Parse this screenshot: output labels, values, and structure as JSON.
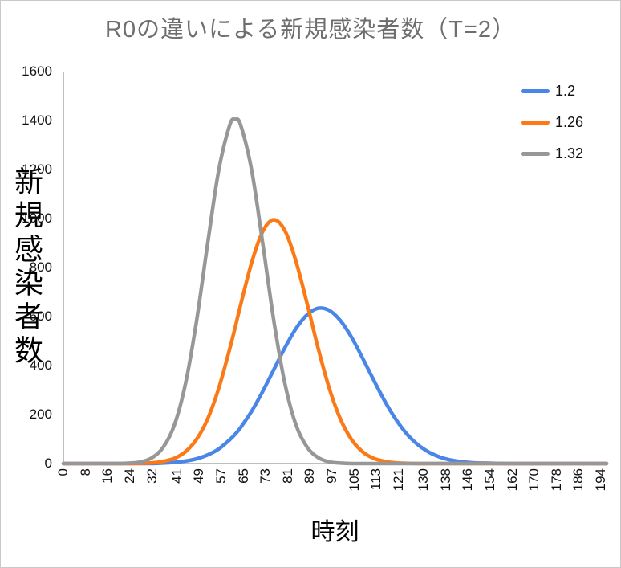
{
  "chart_data": {
    "type": "line",
    "title": "R0の違いによる新規感染者数（T=2）",
    "xlabel": "時刻",
    "ylabel": "新規感染者数",
    "ylim": [
      0,
      1600
    ],
    "xlim": [
      0,
      196
    ],
    "grid": "horizontal",
    "legend_position": "top-right",
    "y_ticks": [
      0,
      200,
      400,
      600,
      800,
      1000,
      1200,
      1400,
      1600
    ],
    "x_tick_labels": [
      0,
      8,
      16,
      24,
      32,
      41,
      49,
      57,
      65,
      73,
      81,
      89,
      97,
      105,
      113,
      121,
      130,
      138,
      146,
      154,
      162,
      170,
      178,
      186,
      194
    ],
    "x": [
      0,
      4,
      8,
      12,
      16,
      20,
      24,
      28,
      32,
      36,
      40,
      44,
      48,
      52,
      56,
      60,
      62,
      64,
      68,
      72,
      76,
      80,
      84,
      88,
      92,
      96,
      100,
      104,
      108,
      112,
      116,
      120,
      124,
      128,
      132,
      136,
      140,
      144,
      148,
      152,
      156,
      160,
      164,
      168,
      172,
      176,
      180,
      184,
      188,
      192,
      196
    ],
    "series": [
      {
        "name": "1.2",
        "color": "#4a86e8",
        "peak": {
          "x": 93,
          "y": 635
        },
        "values": [
          0,
          0,
          0,
          0,
          0,
          0,
          0,
          0,
          0,
          2,
          5,
          10,
          19,
          35,
          59,
          97,
          120,
          148,
          215,
          296,
          385,
          474,
          552,
          608,
          634,
          625,
          583,
          515,
          430,
          340,
          254,
          180,
          120,
          76,
          46,
          26,
          14,
          7,
          3,
          2,
          1,
          0,
          0,
          0,
          0,
          0,
          0,
          0,
          0,
          0,
          0
        ]
      },
      {
        "name": "1.26",
        "color": "#fb7a17",
        "peak": {
          "x": 75,
          "y": 995
        },
        "values": [
          0,
          0,
          0,
          0,
          0,
          0,
          0,
          1,
          3,
          9,
          21,
          48,
          98,
          181,
          305,
          467,
          557,
          650,
          823,
          949,
          995,
          949,
          823,
          650,
          467,
          305,
          181,
          98,
          48,
          21,
          9,
          3,
          1,
          0,
          0,
          0,
          0,
          0,
          0,
          0,
          0,
          0,
          0,
          0,
          0,
          0,
          0,
          0,
          0,
          0,
          0
        ]
      },
      {
        "name": "1.32",
        "color": "#979797",
        "peak": {
          "x": 62,
          "y": 1405
        },
        "values": [
          0,
          0,
          0,
          0,
          0,
          0,
          2,
          7,
          24,
          66,
          156,
          323,
          578,
          893,
          1193,
          1380,
          1405,
          1380,
          1193,
          893,
          578,
          323,
          156,
          66,
          24,
          7,
          2,
          0,
          0,
          0,
          0,
          0,
          0,
          0,
          0,
          0,
          0,
          0,
          0,
          0,
          0,
          0,
          0,
          0,
          0,
          0,
          0,
          0,
          0,
          0,
          0
        ]
      }
    ],
    "colors": {
      "gridline": "#d9d9d9",
      "axis": "#bfbfbf",
      "title": "#6e6e6e",
      "tick_text": "#111111"
    }
  }
}
